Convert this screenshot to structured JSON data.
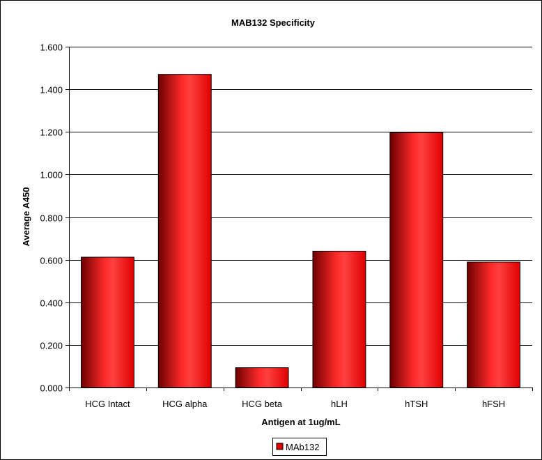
{
  "chart_data": {
    "type": "bar",
    "title": "MAB132 Specificity",
    "xlabel": "Antigen at 1ug/mL",
    "ylabel": "Average A450",
    "categories": [
      "HCG Intact",
      "HCG alpha",
      "HCG beta",
      "hLH",
      "hTSH",
      "hFSH"
    ],
    "series": [
      {
        "name": "MAb132",
        "values": [
          0.612,
          1.47,
          0.093,
          0.64,
          1.197,
          0.589
        ]
      }
    ],
    "ylim": [
      0,
      1.6
    ],
    "yticks": [
      "0.000",
      "0.200",
      "0.400",
      "0.600",
      "0.800",
      "1.000",
      "1.200",
      "1.400",
      "1.600"
    ],
    "grid": true,
    "legend_position": "bottom",
    "colors": {
      "bar_light": "#ff3b3b",
      "bar_dark": "#7a0000",
      "bar_mid": "#e00000",
      "border": "#000000"
    }
  }
}
